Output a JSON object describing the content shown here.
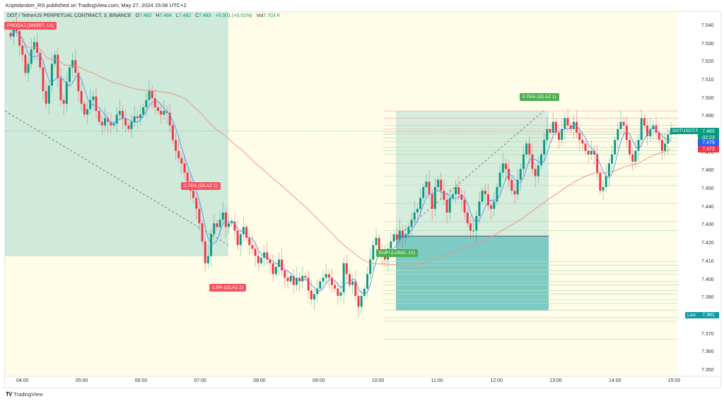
{
  "header": {
    "publisher_line": "Kriptobroker_RS published on TradingView.com, May 27, 2024 15:06 UTC+2"
  },
  "legend": {
    "symbol": "DOT / TetherUS PERPETUAL CONTRACT, 3, BINANCE",
    "open_label": "O",
    "open": "7.482",
    "high_label": "H",
    "high": "7.484",
    "low_label": "L",
    "low": "7.482",
    "close_label": "C",
    "close": "7.483",
    "change": "+0.001 (+0.01%)",
    "vol_label": "Vol",
    "vol": "7.703 K"
  },
  "annotations": {
    "short_entry": "PRODAJ (SHORT, 1X)",
    "short_tp1": "0.75% (IZLAZ 1)",
    "short_tp2": "1.5% (IZLAZ 2)",
    "long_entry": "KUPI (LONG, 1X)",
    "long_tp1": "0.75% (IZLAZ 1)"
  },
  "price_badges": {
    "symbol_tag": "DOTUSDT.P",
    "last_price": "7.483",
    "countdown": "02:23",
    "ma_fast": "7.479",
    "ma_slow": "7.473",
    "low_label": "Low",
    "low_value": "7.381"
  },
  "footer": {
    "brand": "TradingView",
    "logo": "TV"
  },
  "colors": {
    "up": "#089981",
    "down": "#f23645",
    "ma_fast": "#5b8def",
    "ma_slow": "#f28b82",
    "bg_yellow": "#fffde8",
    "short_zone": "#cfe9da",
    "long_zone": "#d6ecdc",
    "stop_zone": "#7ecac4",
    "last_price": "#089981",
    "ma_fast_badge": "#2962ff",
    "ma_slow_badge": "#f23645",
    "low_badge": "#0e9aa7"
  },
  "chart_data": {
    "type": "candlestick",
    "title": "DOT / TetherUS PERPETUAL CONTRACT, 3, BINANCE",
    "xlabel": "",
    "ylabel": "",
    "ylim": [
      7.345,
      7.545
    ],
    "yticks": [
      "7.540",
      "7.530",
      "7.520",
      "7.510",
      "7.500",
      "7.490",
      "7.480",
      "7.470",
      "7.460",
      "7.450",
      "7.440",
      "7.430",
      "7.420",
      "7.410",
      "7.400",
      "7.390",
      "7.380",
      "7.370",
      "7.360",
      "7.350"
    ],
    "xticks": [
      "04:00",
      "05:00",
      "06:00",
      "07:00",
      "08:00",
      "09:00",
      "10:00",
      "11:00",
      "12:00",
      "13:00",
      "14:00",
      "15:00"
    ],
    "candle_interval_min": 3,
    "series_close": [
      7.535,
      7.54,
      7.538,
      7.53,
      7.525,
      7.515,
      7.52,
      7.528,
      7.532,
      7.526,
      7.518,
      7.505,
      7.498,
      7.508,
      7.52,
      7.525,
      7.512,
      7.5,
      7.498,
      7.51,
      7.518,
      7.522,
      7.515,
      7.505,
      7.498,
      7.492,
      7.495,
      7.5,
      7.502,
      7.494,
      7.488,
      7.486,
      7.49,
      7.488,
      7.486,
      7.487,
      7.492,
      7.494,
      7.49,
      7.486,
      7.484,
      7.488,
      7.491,
      7.49,
      7.492,
      7.496,
      7.5,
      7.505,
      7.501,
      7.496,
      7.494,
      7.492,
      7.494,
      7.493,
      7.486,
      7.478,
      7.472,
      7.468,
      7.465,
      7.46,
      7.455,
      7.45,
      7.446,
      7.44,
      7.432,
      7.422,
      7.41,
      7.414,
      7.426,
      7.432,
      7.43,
      7.434,
      7.438,
      7.43,
      7.432,
      7.433,
      7.428,
      7.42,
      7.426,
      7.43,
      7.424,
      7.42,
      7.418,
      7.414,
      7.41,
      7.413,
      7.416,
      7.412,
      7.41,
      7.404,
      7.408,
      7.412,
      7.406,
      7.402,
      7.4,
      7.403,
      7.398,
      7.402,
      7.4,
      7.403,
      7.402,
      7.395,
      7.39,
      7.393,
      7.396,
      7.4,
      7.402,
      7.404,
      7.402,
      7.398,
      7.396,
      7.392,
      7.394,
      7.41,
      7.404,
      7.398,
      7.4,
      7.392,
      7.386,
      7.392,
      7.396,
      7.404,
      7.412,
      7.42,
      7.424,
      7.416,
      7.414,
      7.412,
      7.418,
      7.422,
      7.426,
      7.423,
      7.428,
      7.424,
      7.426,
      7.43,
      7.434,
      7.438,
      7.44,
      7.446,
      7.452,
      7.455,
      7.448,
      7.44,
      7.452,
      7.456,
      7.45,
      7.445,
      7.438,
      7.446,
      7.448,
      7.452,
      7.448,
      7.445,
      7.438,
      7.432,
      7.428,
      7.428,
      7.436,
      7.444,
      7.45,
      7.448,
      7.442,
      7.44,
      7.444,
      7.452,
      7.46,
      7.465,
      7.462,
      7.456,
      7.45,
      7.448,
      7.456,
      7.462,
      7.47,
      7.476,
      7.47,
      7.462,
      7.458,
      7.464,
      7.47,
      7.478,
      7.484,
      7.482,
      7.488,
      7.482,
      7.478,
      7.484,
      7.49,
      7.486,
      7.484,
      7.488,
      7.482,
      7.478,
      7.476,
      7.472,
      7.47,
      7.472,
      7.47,
      7.46,
      7.45,
      7.452,
      7.458,
      7.465,
      7.47,
      7.478,
      7.484,
      7.488,
      7.486,
      7.478,
      7.47,
      7.466,
      7.472,
      7.478,
      7.49,
      7.486,
      7.48,
      7.484,
      7.486,
      7.482,
      7.478,
      7.472,
      7.476,
      7.481,
      7.483
    ],
    "ma_fast_last": 7.479,
    "ma_slow_last": 7.473,
    "last_price": 7.483,
    "session_low": 7.381,
    "grid": false,
    "legend_position": "top-left"
  }
}
